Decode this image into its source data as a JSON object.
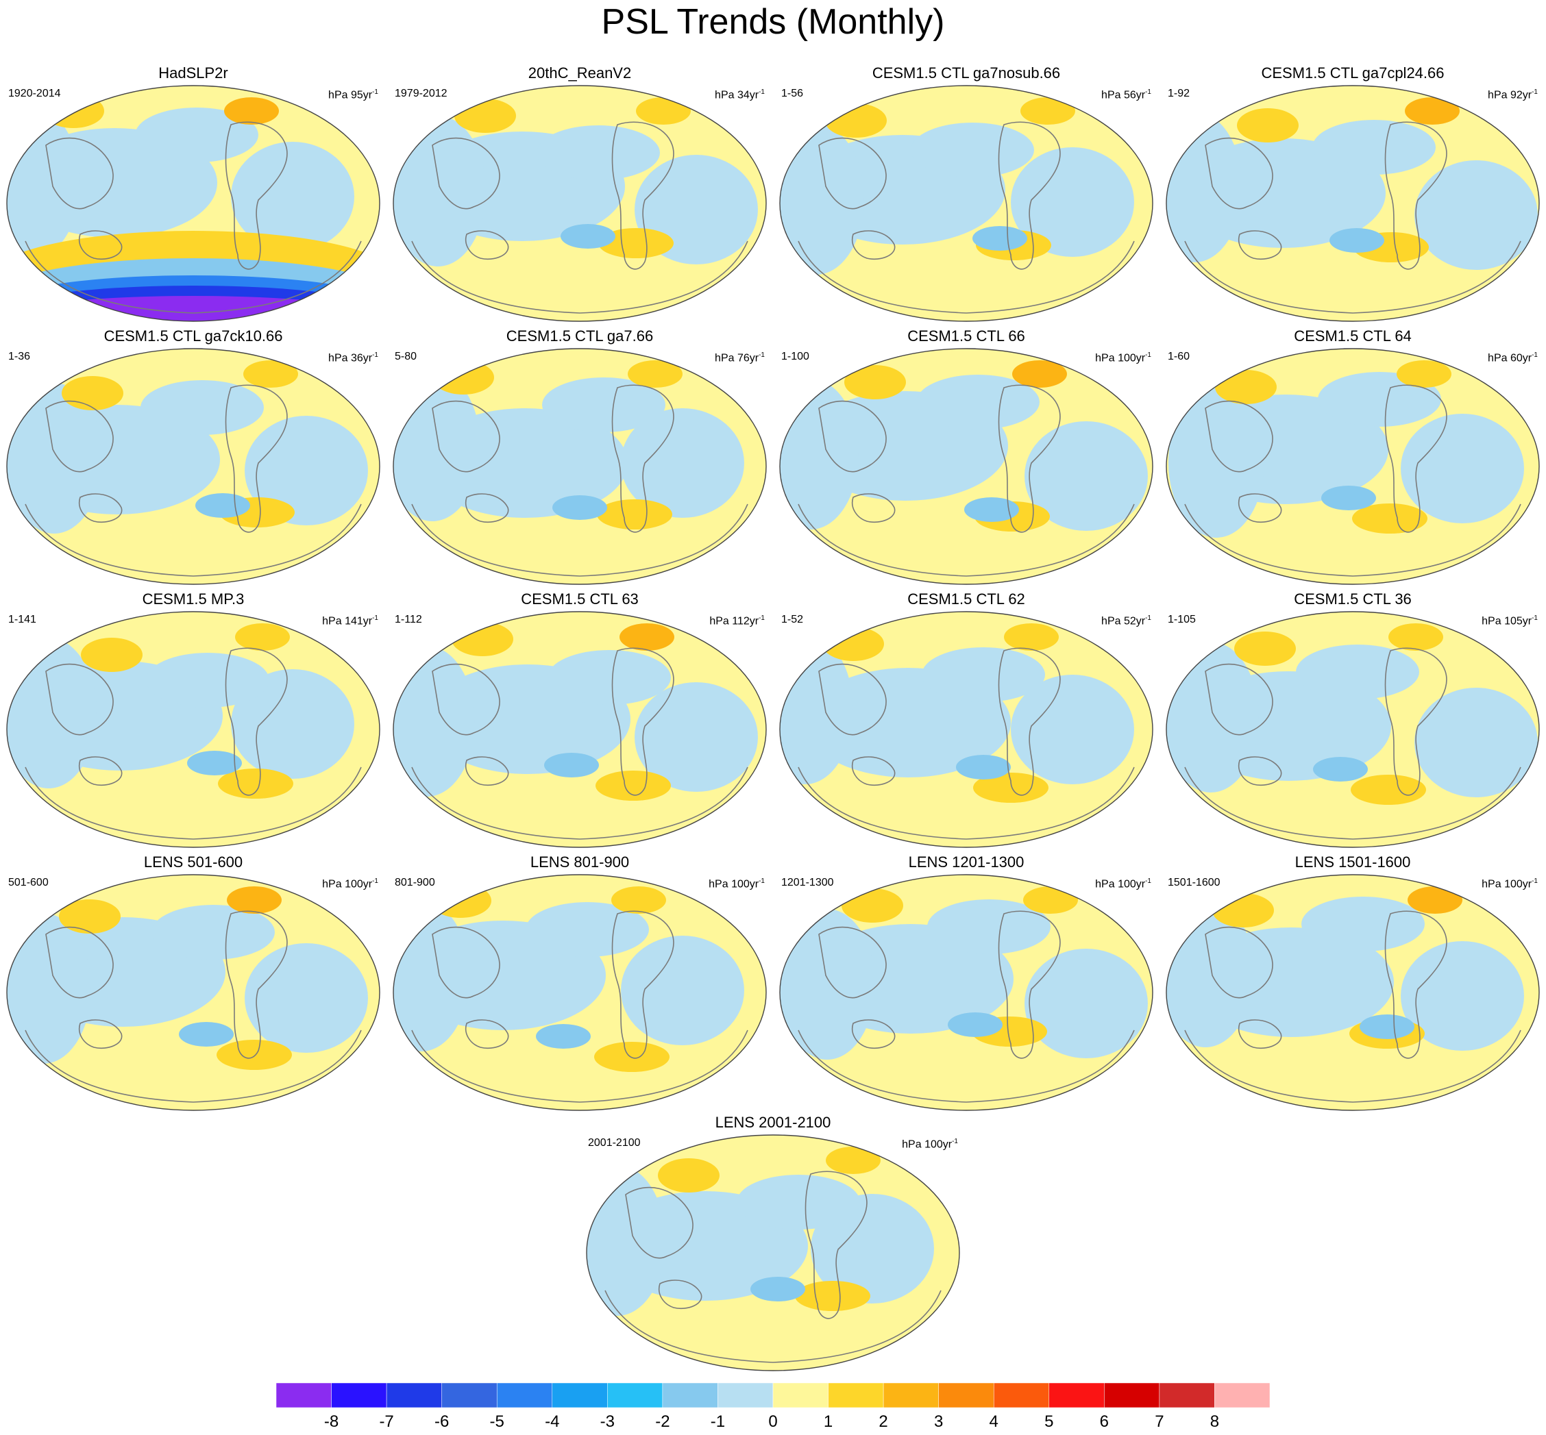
{
  "title": "PSL Trends (Monthly)",
  "colors": {
    "ocean_outline": "#444444",
    "coast": "#7a7a7a",
    "palette": [
      "#8b2cf0",
      "#2a12ff",
      "#1f3ae8",
      "#3466e0",
      "#2b82f2",
      "#19a0f2",
      "#26c0f6",
      "#86c9ee",
      "#b7dff2",
      "#fef79a",
      "#fdd62a",
      "#fcb414",
      "#fb8a0c",
      "#fb5a0c",
      "#fb1414",
      "#d60000",
      "#d22a2a",
      "#ffb1b1"
    ]
  },
  "colorbar": {
    "labels": [
      "-8",
      "-7",
      "-6",
      "-5",
      "-4",
      "-3",
      "-2",
      "-1",
      "0",
      "1",
      "2",
      "3",
      "4",
      "5",
      "6",
      "7",
      "8"
    ]
  },
  "panels": [
    {
      "title": "HadSLP2r",
      "range": "1920-2014",
      "units_prefix": "hPa 95yr",
      "units_exp": "-1"
    },
    {
      "title": "20thC_ReanV2",
      "range": "1979-2012",
      "units_prefix": "hPa 34yr",
      "units_exp": "-1"
    },
    {
      "title": "CESM1.5 CTL ga7nosub.66",
      "range": "1-56",
      "units_prefix": "hPa 56yr",
      "units_exp": "-1"
    },
    {
      "title": "CESM1.5 CTL ga7cpl24.66",
      "range": "1-92",
      "units_prefix": "hPa 92yr",
      "units_exp": "-1"
    },
    {
      "title": "CESM1.5 CTL ga7ck10.66",
      "range": "1-36",
      "units_prefix": "hPa 36yr",
      "units_exp": "-1"
    },
    {
      "title": "CESM1.5 CTL ga7.66",
      "range": "5-80",
      "units_prefix": "hPa 76yr",
      "units_exp": "-1"
    },
    {
      "title": "CESM1.5 CTL 66",
      "range": "1-100",
      "units_prefix": "hPa 100yr",
      "units_exp": "-1"
    },
    {
      "title": "CESM1.5 CTL 64",
      "range": "1-60",
      "units_prefix": "hPa 60yr",
      "units_exp": "-1"
    },
    {
      "title": "CESM1.5 MP.3",
      "range": "1-141",
      "units_prefix": "hPa 141yr",
      "units_exp": "-1"
    },
    {
      "title": "CESM1.5 CTL 63",
      "range": "1-112",
      "units_prefix": "hPa 112yr",
      "units_exp": "-1"
    },
    {
      "title": "CESM1.5 CTL 62",
      "range": "1-52",
      "units_prefix": "hPa 52yr",
      "units_exp": "-1"
    },
    {
      "title": "CESM1.5 CTL 36",
      "range": "1-105",
      "units_prefix": "hPa 105yr",
      "units_exp": "-1"
    },
    {
      "title": "LENS 501-600",
      "range": "501-600",
      "units_prefix": "hPa 100yr",
      "units_exp": "-1"
    },
    {
      "title": "LENS 801-900",
      "range": "801-900",
      "units_prefix": "hPa 100yr",
      "units_exp": "-1"
    },
    {
      "title": "LENS 1201-1300",
      "range": "1201-1300",
      "units_prefix": "hPa 100yr",
      "units_exp": "-1"
    },
    {
      "title": "LENS 1501-1600",
      "range": "1501-1600",
      "units_prefix": "hPa 100yr",
      "units_exp": "-1"
    },
    {
      "title": "LENS 2001-2100",
      "range": "2001-2100",
      "units_prefix": "hPa 100yr",
      "units_exp": "-1"
    }
  ]
}
